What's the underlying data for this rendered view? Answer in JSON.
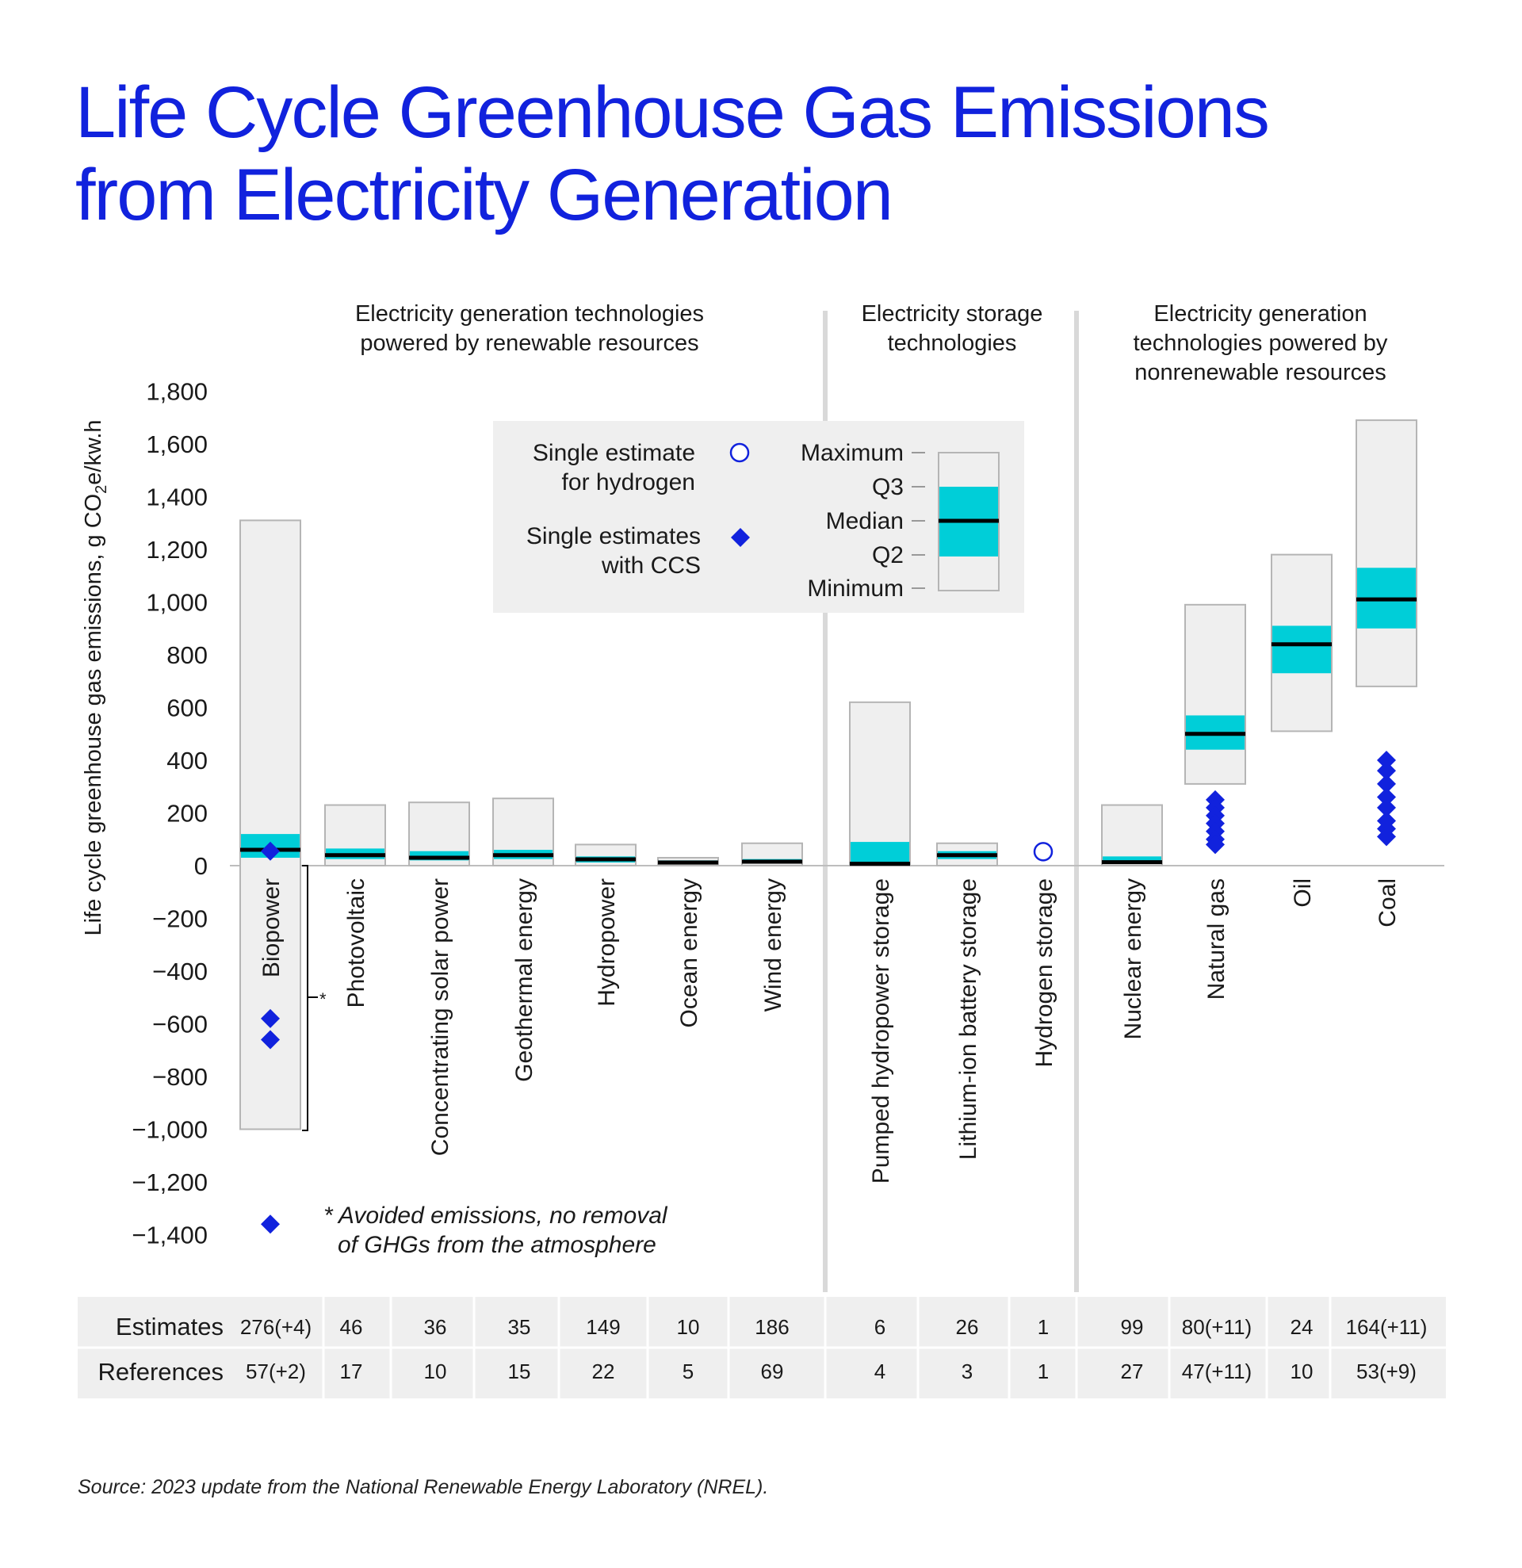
{
  "title_lines": [
    "Life Cycle Greenhouse Gas Emissions",
    "from Electricity Generation"
  ],
  "source": "Source: 2023 update from the National Renewable Energy Laboratory (NREL).",
  "colors": {
    "title": "#1122dd",
    "iqr": "#00ced8",
    "box": "#efefef",
    "box_stroke": "#b5b5b5",
    "marker": "#1122dd",
    "median": "#000000"
  },
  "chart_data": {
    "type": "box",
    "ylabel": "Life cycle greenhouse gas emissions, g CO2e/kw.h",
    "ylabel_main": "Life cycle greenhouse gas emissions, g CO",
    "ylabel_sub": "2",
    "ylabel_tail": "e/kw.h",
    "ylim": [
      -1400,
      1800
    ],
    "ytick_values": [
      1800,
      1600,
      1400,
      1200,
      1000,
      800,
      600,
      400,
      200,
      0,
      -200,
      -400,
      -600,
      -800,
      -1000,
      -1200,
      -1400
    ],
    "yticks": [
      "1,800",
      "1,600",
      "1,400",
      "1,200",
      "1,000",
      "800",
      "600",
      "400",
      "200",
      "0",
      "−200",
      "−400",
      "−600",
      "−800",
      "−1,000",
      "−1,200",
      "−1,400"
    ],
    "groups": [
      {
        "label_lines": [
          "Electricity generation technologies",
          "powered by renewable resources"
        ]
      },
      {
        "label_lines": [
          "Electricity storage",
          "technologies"
        ]
      },
      {
        "label_lines": [
          "Electricity generation",
          "technologies powered by",
          "nonrenewable resources"
        ]
      }
    ],
    "technologies": [
      {
        "name": "Biopower",
        "min": -1000,
        "q2": 30,
        "median": 60,
        "q3": 120,
        "max": 1310,
        "ccs": [
          55,
          -580,
          -660,
          -1360
        ],
        "estimates": "276(+4)",
        "references": "57(+2)"
      },
      {
        "name": "Photovoltaic",
        "min": 0,
        "q2": 25,
        "median": 40,
        "q3": 65,
        "max": 230,
        "estimates": "46",
        "references": "17"
      },
      {
        "name": "Concentrating solar power",
        "min": 0,
        "q2": 20,
        "median": 30,
        "q3": 55,
        "max": 240,
        "estimates": "36",
        "references": "10"
      },
      {
        "name": "Geothermal energy",
        "min": 0,
        "q2": 25,
        "median": 40,
        "q3": 60,
        "max": 255,
        "estimates": "35",
        "references": "15"
      },
      {
        "name": "Hydropower",
        "min": 0,
        "q2": 12,
        "median": 24,
        "q3": 35,
        "max": 80,
        "estimates": "149",
        "references": "22"
      },
      {
        "name": "Ocean energy",
        "min": 5,
        "q2": 8,
        "median": 12,
        "q3": 20,
        "max": 30,
        "estimates": "10",
        "references": "5"
      },
      {
        "name": "Wind energy",
        "min": 0,
        "q2": 8,
        "median": 15,
        "q3": 25,
        "max": 85,
        "estimates": "186",
        "references": "69"
      },
      {
        "name": "Pumped hydropower storage",
        "min": 0,
        "q2": 10,
        "median": 7,
        "q3": 90,
        "max": 620,
        "estimates": "6",
        "references": "4"
      },
      {
        "name": "Lithium-ion battery storage",
        "min": 0,
        "q2": 25,
        "median": 40,
        "q3": 55,
        "max": 85,
        "estimates": "26",
        "references": "3"
      },
      {
        "name": "Hydrogen storage",
        "single": 53,
        "estimates": "1",
        "references": "1"
      },
      {
        "name": "Nuclear energy",
        "min": 0,
        "q2": 6,
        "median": 13,
        "q3": 35,
        "max": 230,
        "estimates": "99",
        "references": "27"
      },
      {
        "name": "Natural gas",
        "min": 310,
        "q2": 440,
        "median": 500,
        "q3": 570,
        "max": 990,
        "ccs": [
          250,
          220,
          190,
          160,
          130,
          100,
          80
        ],
        "estimates": "80(+11)",
        "references": "47(+11)"
      },
      {
        "name": "Oil",
        "min": 510,
        "q2": 730,
        "median": 840,
        "q3": 910,
        "max": 1180,
        "estimates": "24",
        "references": "10"
      },
      {
        "name": "Coal",
        "min": 680,
        "q2": 900,
        "median": 1010,
        "q3": 1130,
        "max": 1690,
        "ccs": [
          400,
          360,
          310,
          260,
          220,
          170,
          140,
          110
        ],
        "estimates": "164(+11)",
        "references": "53(+9)"
      }
    ],
    "legend": {
      "hydrogen": [
        "Single estimate",
        "for hydrogen"
      ],
      "ccs": [
        "Single estimates",
        "with CCS"
      ],
      "box_labels": [
        "Maximum",
        "Q3",
        "Median",
        "Q2",
        "Minimum"
      ]
    },
    "footnote_marker": "*",
    "footnote_lines": [
      "* Avoided emissions, no removal",
      "of GHGs from the atmosphere"
    ],
    "table_row_labels": [
      "Estimates",
      "References"
    ]
  }
}
